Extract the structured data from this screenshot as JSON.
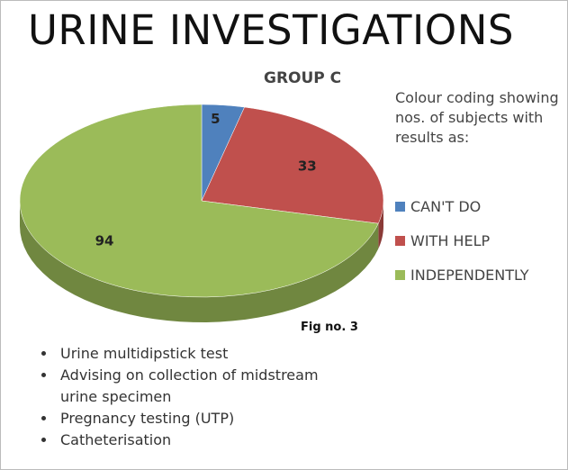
{
  "chart_data": {
    "type": "pie",
    "title": "URINE INVESTIGATIONS",
    "subtitle": "GROUP C",
    "legend_title": "Colour coding showing nos. of subjects with results as:",
    "categories": [
      "CAN'T DO",
      "WITH HELP",
      "INDEPENDENTLY"
    ],
    "values": [
      5,
      33,
      94
    ],
    "colors": [
      "#4f81bd",
      "#c0504d",
      "#9bbb59"
    ],
    "caption": "Fig no. 3"
  },
  "notes": {
    "bullets": [
      "Urine multidipstick test",
      "Advising on collection of midstream urine specimen",
      "Pregnancy testing (UTP)",
      "Catheterisation"
    ]
  }
}
